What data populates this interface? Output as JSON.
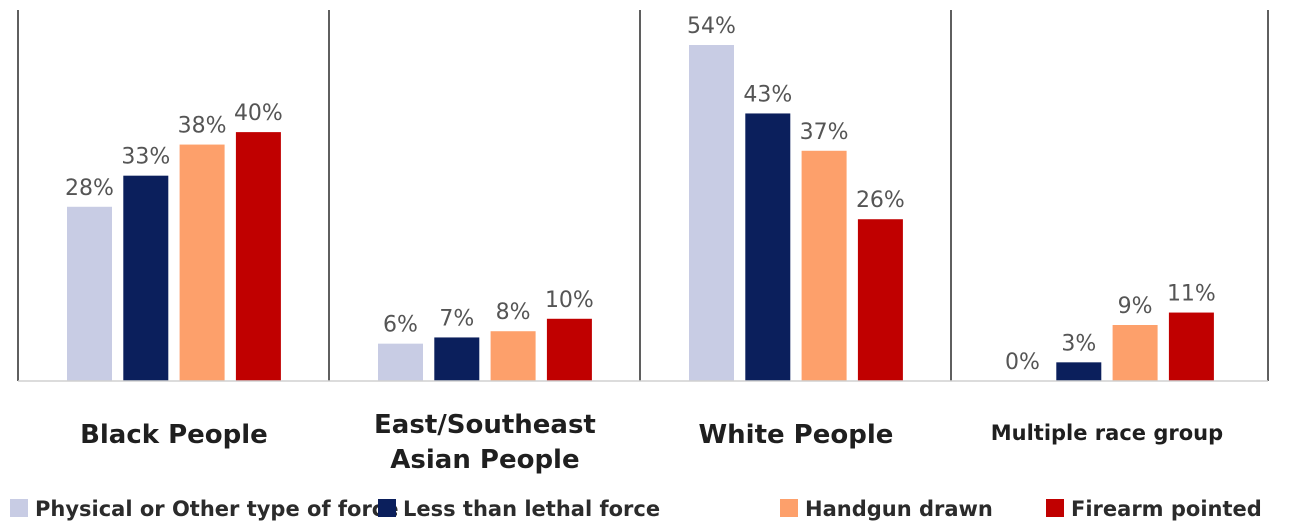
{
  "chart_data": {
    "type": "bar",
    "title": "",
    "xlabel": "",
    "ylabel": "",
    "ylim": [
      0,
      56
    ],
    "grid": false,
    "legend_position": "bottom",
    "value_format": "percent",
    "categories": [
      [
        "Black People"
      ],
      [
        "East/Southeast",
        "Asian People"
      ],
      [
        "White People"
      ],
      [
        "Multiple race group"
      ]
    ],
    "category_font_sizes": [
      26,
      26,
      26,
      21
    ],
    "series": [
      {
        "name": "Physical or Other type of force",
        "color": "#c8cce4",
        "values": [
          28,
          6,
          54,
          0
        ]
      },
      {
        "name": "Less than lethal force",
        "color": "#0b1f5c",
        "values": [
          33,
          7,
          43,
          3
        ]
      },
      {
        "name": "Handgun drawn",
        "color": "#fda06b",
        "values": [
          38,
          8,
          37,
          9
        ]
      },
      {
        "name": "Firearm pointed",
        "color": "#c00000",
        "values": [
          40,
          10,
          26,
          11
        ]
      }
    ]
  }
}
